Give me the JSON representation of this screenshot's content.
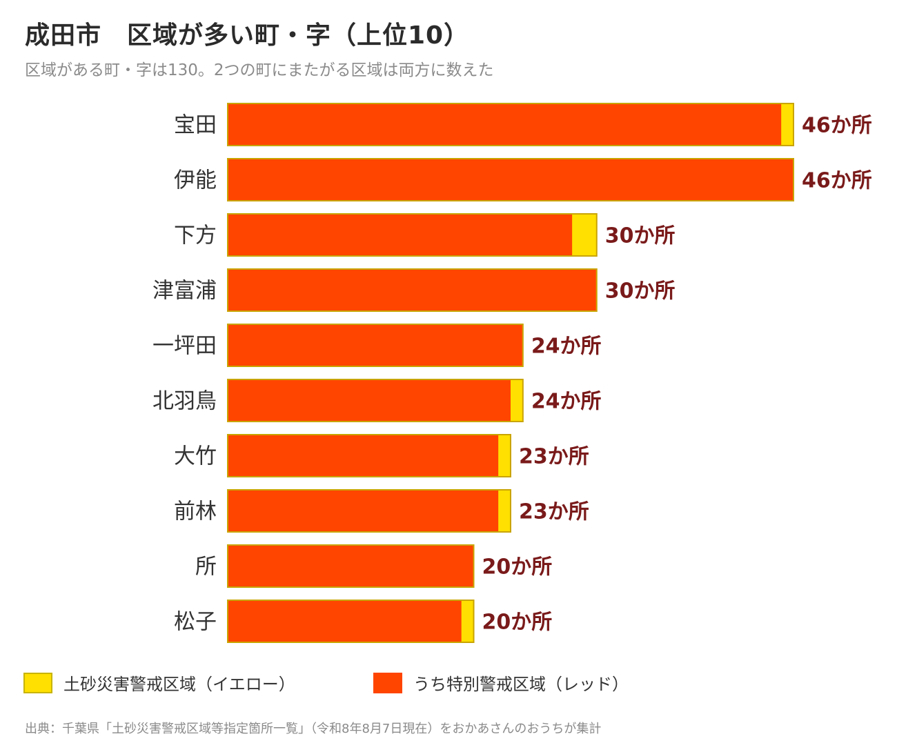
{
  "title": "成田市　区域が多い町・字（上位10）",
  "subtitle": "区域がある町・字は130。2つの町にまたがる区域は両方に数えた",
  "colors": {
    "yellow": "#FFE000",
    "yellow_border": "#C8B400",
    "red": "#FF4500",
    "red_border": "#C9A400",
    "label": "#7A1A1A",
    "category": "#333333"
  },
  "legend": {
    "yellow_label": "土砂災害警戒区域（イエロー）",
    "red_label": "うち特別警戒区域（レッド）"
  },
  "source": "出典：千葉県「土砂災害警戒区域等指定箇所一覧」（令和8年8月7日現在）をおかあさんのおうちが集計",
  "chart_data": {
    "type": "bar",
    "orientation": "horizontal",
    "stacked": true,
    "categories": [
      "宝田",
      "伊能",
      "下方",
      "津富浦",
      "一坪田",
      "北羽鳥",
      "大竹",
      "前林",
      "所",
      "松子"
    ],
    "series": [
      {
        "name": "うち特別警戒区域（レッド）",
        "values": [
          45,
          46,
          28,
          30,
          24,
          23,
          22,
          22,
          20,
          19
        ]
      },
      {
        "name": "土砂災害警戒区域（イエロー）",
        "values": [
          1,
          0,
          2,
          0,
          0,
          1,
          1,
          1,
          0,
          1
        ]
      }
    ],
    "totals": [
      46,
      46,
      30,
      30,
      24,
      24,
      23,
      23,
      20,
      20
    ],
    "value_labels": [
      "46か所",
      "46か所",
      "30か所",
      "30か所",
      "24か所",
      "24か所",
      "23か所",
      "23か所",
      "20か所",
      "20か所"
    ],
    "xlim": [
      0,
      46
    ],
    "grid": false,
    "legend_position": "bottom"
  }
}
